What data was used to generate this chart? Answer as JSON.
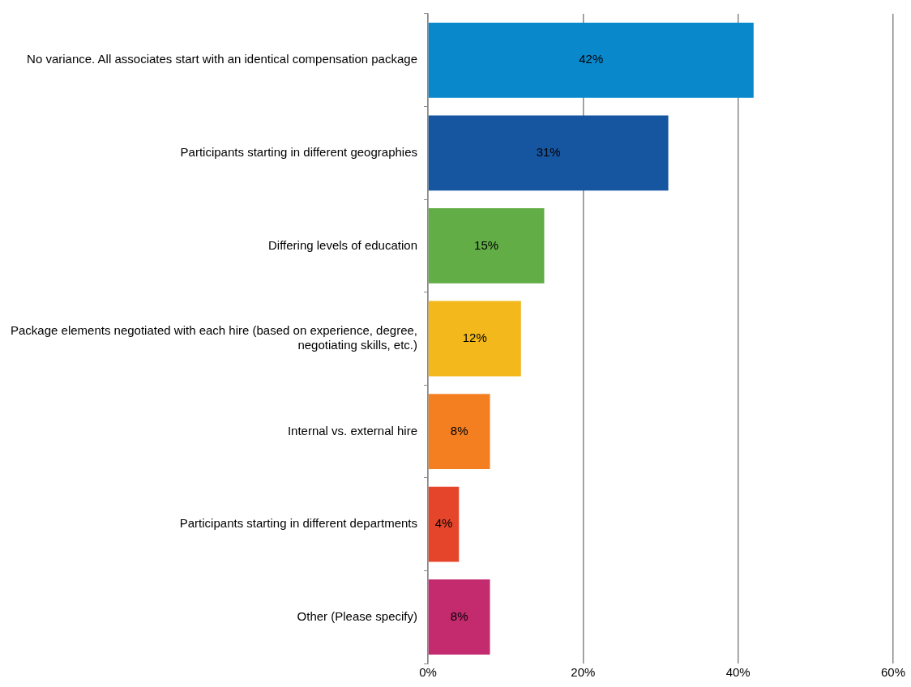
{
  "chart_data": {
    "type": "bar",
    "orientation": "horizontal",
    "categories": [
      "No variance. All associates start with an identical compensation package",
      "Participants starting in different geographies",
      "Differing levels of education",
      "Package elements negotiated with each hire (based on experience, degree, negotiating skills, etc.)",
      "Internal vs. external hire",
      "Participants starting in different departments",
      "Other (Please specify)"
    ],
    "values": [
      42,
      31,
      15,
      12,
      8,
      4,
      8
    ],
    "colors": [
      "#0a88cc",
      "#1655a0",
      "#62ad46",
      "#f2b81c",
      "#f47f20",
      "#e5452a",
      "#c42a6e"
    ],
    "value_labels": [
      "42%",
      "31%",
      "15%",
      "12%",
      "8%",
      "4%",
      "8%"
    ],
    "xlim": [
      0,
      60
    ],
    "xticks": [
      {
        "value": 0,
        "label": "0%"
      },
      {
        "value": 20,
        "label": "20%"
      },
      {
        "value": 40,
        "label": "40%"
      },
      {
        "value": 60,
        "label": "60%"
      }
    ],
    "grid": "x",
    "legend": false
  }
}
